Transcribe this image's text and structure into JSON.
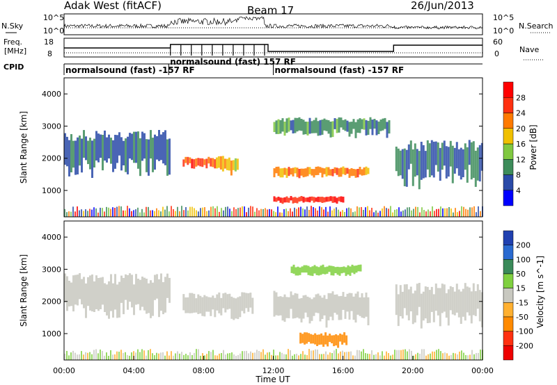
{
  "header": {
    "station": "Adak West (fitACF)",
    "beam": "Beam 17",
    "date": "26/Jun/2013"
  },
  "noise_panel": {
    "left_label": "N.Sky",
    "right_label": "N.Search",
    "left_ticks": [
      "10^5",
      "10^0"
    ],
    "right_ticks": [
      "10^5",
      "10^0"
    ],
    "colors": {
      "nsky": "#000000",
      "nsearch": "#000000"
    }
  },
  "freq_panel": {
    "left_label_line1": "Freq.",
    "left_label_line2": "[MHz]",
    "right_label": "Nave",
    "left_ticks": [
      "18",
      "8"
    ],
    "right_ticks": [
      "60",
      "0"
    ]
  },
  "cpid": {
    "label": "CPID",
    "segments": [
      {
        "text": "normalsound (fast) -157 RF",
        "start_hour": 0
      },
      {
        "text": "normalsound (fast) 157 RF",
        "start_hour": 6.0
      },
      {
        "text": "normalsound (fast) -157 RF",
        "start_hour": 12.0
      }
    ]
  },
  "x_axis": {
    "label": "Time UT",
    "ticks": [
      "00:00",
      "04:00",
      "08:00",
      "12:00",
      "16:00",
      "20:00",
      "00:00"
    ],
    "tick_hours": [
      0,
      4,
      8,
      12,
      16,
      20,
      24
    ]
  },
  "y_axis": {
    "label": "Slant Range [km]",
    "ticks": [
      "1000",
      "2000",
      "3000",
      "4000"
    ],
    "tick_values": [
      1000,
      2000,
      3000,
      4000
    ]
  },
  "power_colorbar": {
    "label": "Power [dB]",
    "ticks": [
      "4",
      "8",
      "12",
      "16",
      "20",
      "24",
      "28"
    ],
    "colors": [
      "#0000ff",
      "#2a4aa8",
      "#3d8c5a",
      "#80c840",
      "#f0c000",
      "#ff7a00",
      "#ff3010",
      "#ff0000"
    ]
  },
  "velocity_colorbar": {
    "label": "Velocity [m s^-1]",
    "ticks": [
      "200",
      "100",
      "50",
      "15",
      "-15",
      "-50",
      "-100",
      "-200"
    ],
    "colors": [
      "#2040b0",
      "#2a6ad0",
      "#3a8a5a",
      "#80d040",
      "#c8c8c0",
      "#ffb030",
      "#ff8a00",
      "#ff3010",
      "#ee0000"
    ]
  },
  "chart_data": {
    "type": "heatmap",
    "title": "Adak West (fitACF) Beam 17 26/Jun/2013",
    "xlabel": "Time UT",
    "ylabel": "Slant Range [km]",
    "xlim": [
      0,
      24
    ],
    "ylim": [
      180,
      4500
    ],
    "panels": [
      {
        "name": "Power [dB]",
        "colorbar_range": [
          0,
          32
        ],
        "bands": [
          {
            "t_start": 0.0,
            "t_end": 6.0,
            "range_km": [
              1500,
              2700
            ],
            "level": 7
          },
          {
            "t_start": 6.8,
            "t_end": 8.7,
            "range_km": [
              1700,
              2000
            ],
            "level": 26
          },
          {
            "t_start": 8.7,
            "t_end": 10.0,
            "range_km": [
              1500,
              2000
            ],
            "level": 18
          },
          {
            "t_start": 12.0,
            "t_end": 17.5,
            "range_km": [
              1400,
              1700
            ],
            "level": 22
          },
          {
            "t_start": 12.0,
            "t_end": 16.0,
            "range_km": [
              600,
              800
            ],
            "level": 28
          },
          {
            "t_start": 12.0,
            "t_end": 18.7,
            "range_km": [
              2700,
              3200
            ],
            "level": 10
          },
          {
            "t_start": 19.0,
            "t_end": 24.0,
            "range_km": [
              1200,
              2400
            ],
            "level": 8
          }
        ]
      },
      {
        "name": "Velocity [m s-1]",
        "colorbar_range": [
          -250,
          250
        ],
        "bands": [
          {
            "t_start": 0.0,
            "t_end": 6.0,
            "range_km": [
              1500,
              2700
            ],
            "level": 0
          },
          {
            "t_start": 6.8,
            "t_end": 10.8,
            "range_km": [
              1500,
              2200
            ],
            "level": 0
          },
          {
            "t_start": 12.0,
            "t_end": 17.5,
            "range_km": [
              1300,
              2200
            ],
            "level": 0
          },
          {
            "t_start": 13.5,
            "t_end": 16.2,
            "range_km": [
              600,
              1000
            ],
            "level": -60
          },
          {
            "t_start": 13.0,
            "t_end": 17.0,
            "range_km": [
              2800,
              3100
            ],
            "level": 30
          },
          {
            "t_start": 19.0,
            "t_end": 24.0,
            "range_km": [
              1200,
              2400
            ],
            "level": 0
          }
        ]
      }
    ],
    "grid": false,
    "legend": "right colorbar"
  }
}
